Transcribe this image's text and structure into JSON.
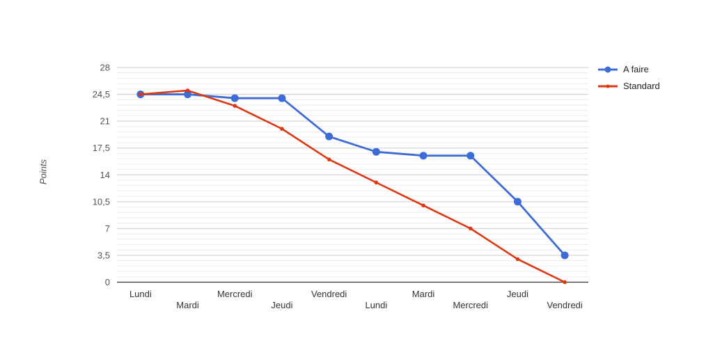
{
  "chart_data": {
    "type": "line",
    "title": "",
    "xlabel": "",
    "ylabel": "Points",
    "categories": [
      "Lundi",
      "Mardi",
      "Mercredi",
      "Jeudi",
      "Vendredi",
      "Lundi",
      "Mardi",
      "Mercredi",
      "Jeudi",
      "Vendredi"
    ],
    "series": [
      {
        "name": "A faire",
        "color": "#3d6cd7",
        "line_width": 2.8,
        "marker": "circle",
        "marker_radius": 5.5,
        "values": [
          24.5,
          24.5,
          24,
          24,
          19,
          17,
          16.5,
          16.5,
          10.5,
          3.5
        ]
      },
      {
        "name": "Standard",
        "color": "#dc3912",
        "line_width": 2.6,
        "marker": "dot",
        "marker_radius": 2.8,
        "values": [
          24.5,
          25,
          23,
          20,
          16,
          13,
          10,
          7,
          3,
          0
        ]
      }
    ],
    "ylim": [
      0,
      28
    ],
    "y_major_step": 3.5,
    "y_minor_step": 0.7,
    "y_tick_labels": [
      "0",
      "3,5",
      "7",
      "10,5",
      "14",
      "17,5",
      "21",
      "24,5",
      "28"
    ],
    "grid": {
      "major_color": "#cccccc",
      "minor_color": "#ececec",
      "baseline_color": "#333333",
      "minor_on": true
    },
    "legend_position": "right"
  }
}
